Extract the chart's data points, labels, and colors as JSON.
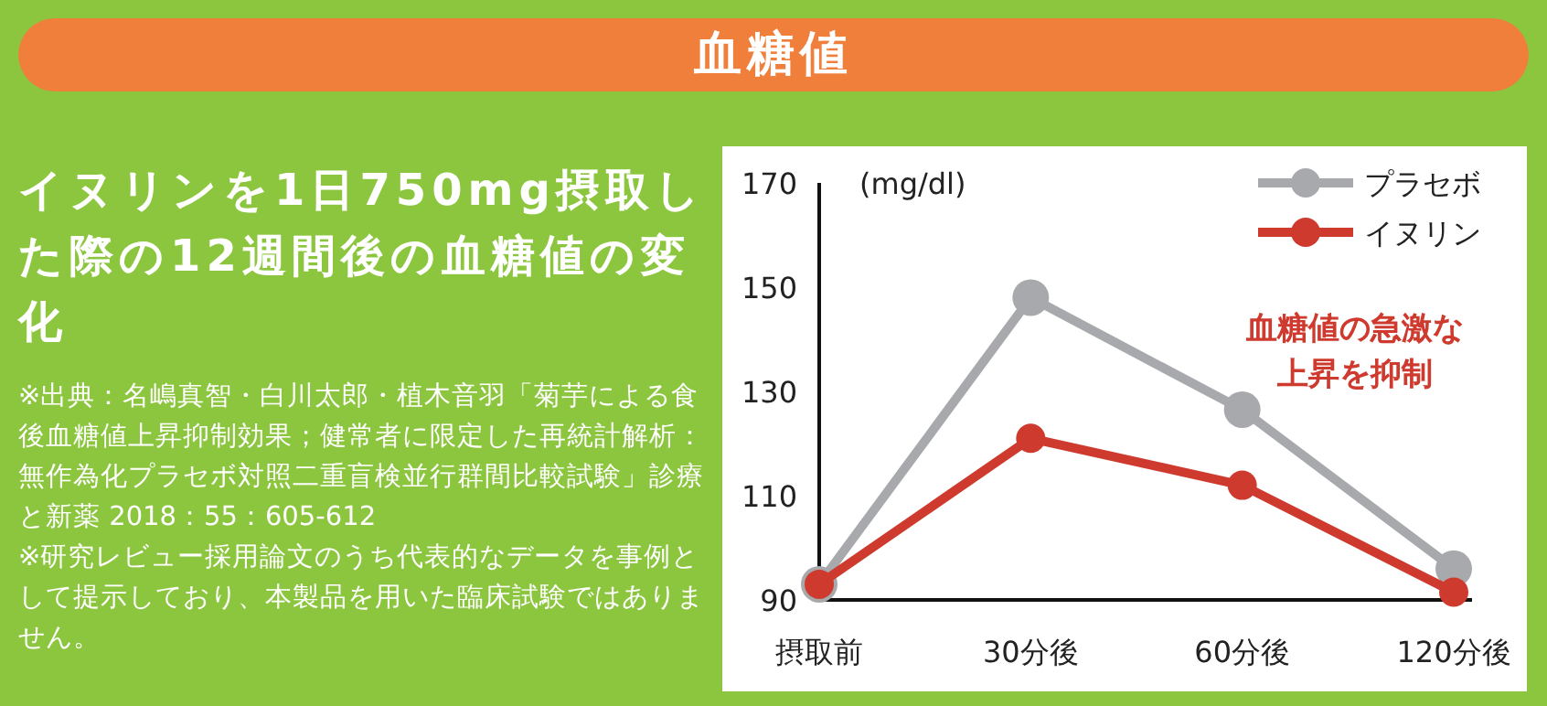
{
  "chart_data": {
    "type": "line",
    "title": "血糖値",
    "subtitle": "イヌリンを1日750mg摂取した際の12週間後の血糖値の変化",
    "ylabel": "(mg/dl)",
    "annotations": [
      "※出典：名嶋真智・白川太郎・植木音羽「菊芋による食後血糖値上昇抑制効果；健常者に限定した再統計解析：無作為化プラセボ対照二重盲検並行群間比較試験」診療と新薬 2018：55：605-612",
      "※研究レビュー採用論文のうち代表的なデータを事例として提示しており、本製品を用いた臨床試験ではありません。",
      "血糖値の急激な上昇を抑制"
    ],
    "categories": [
      "摂取前",
      "30分後",
      "60分後",
      "120分後"
    ],
    "series": [
      {
        "name": "プラセボ",
        "color": "#a7a9ac",
        "values": [
          93,
          148,
          126.5,
          96
        ]
      },
      {
        "name": "イヌリン",
        "color": "#cf3a2f",
        "values": [
          93,
          121,
          112,
          91.5
        ]
      }
    ],
    "ylim": [
      90,
      170
    ],
    "yticks": [
      90,
      110,
      130,
      150,
      170
    ],
    "legend": "top right",
    "marker": "circle",
    "line_style": "solid"
  }
}
